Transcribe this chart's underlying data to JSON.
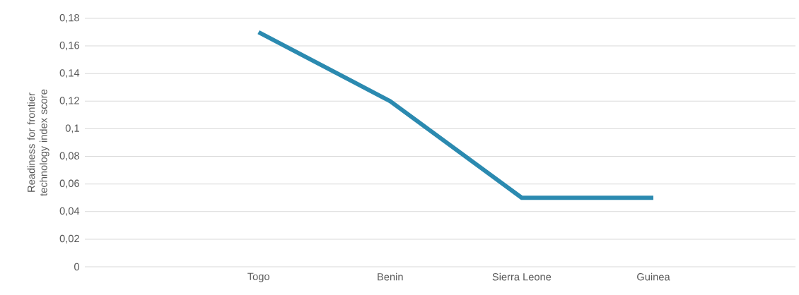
{
  "chart_data": {
    "type": "line",
    "ylabel": "Readiness for frontier technology index score",
    "categories": [
      "Togo",
      "Benin",
      "Sierra Leone",
      "Guinea"
    ],
    "series": [
      {
        "color": "#2b8ab0",
        "values": [
          0.17,
          0.12,
          0.05,
          0.05
        ]
      }
    ],
    "ylim": [
      0,
      0.18
    ],
    "yticks": [
      0,
      {
        "value": 0.02,
        "label": "0,02"
      },
      {
        "value": 0.04,
        "label": "0,04"
      },
      {
        "value": 0.06,
        "label": "0,06"
      },
      {
        "value": 0.08,
        "label": "0,08"
      },
      {
        "value": 0.1,
        "label": "0,1"
      },
      {
        "value": 0.12,
        "label": "0,12"
      },
      {
        "value": 0.14,
        "label": "0,14"
      },
      {
        "value": 0.16,
        "label": "0,16"
      },
      {
        "value": 0.18,
        "label": "0,18"
      }
    ],
    "grid": "y",
    "marker": "none",
    "line_style": "solid"
  }
}
